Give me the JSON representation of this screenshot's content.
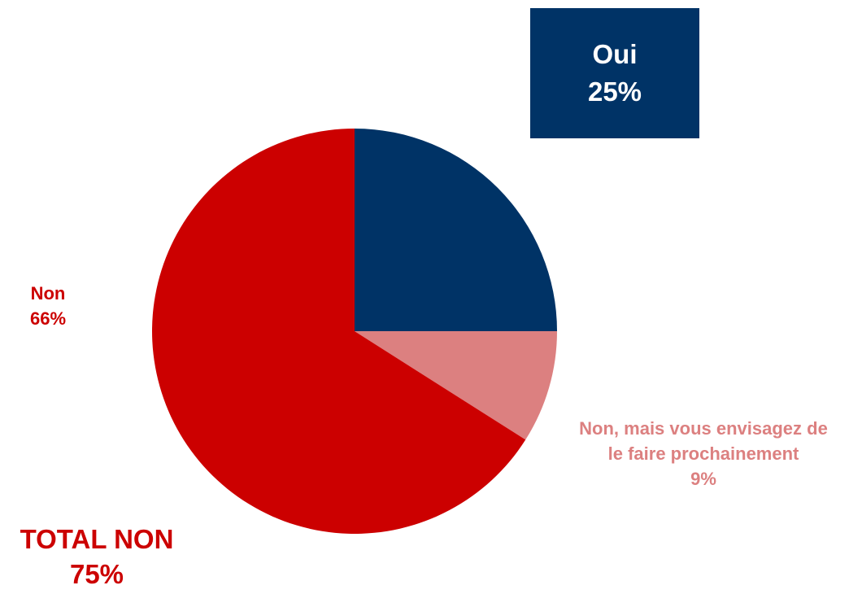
{
  "chart_data": {
    "type": "pie",
    "title": "",
    "slices": [
      {
        "label": "Oui",
        "value": 25,
        "display": "25%",
        "color": "#003366"
      },
      {
        "label": "Non, mais vous envisagez de le faire prochainement",
        "label_line1": "Non, mais vous envisagez de",
        "label_line2": "le faire prochainement",
        "value": 9,
        "display": "9%",
        "color": "#dc8080"
      },
      {
        "label": "Non",
        "value": 66,
        "display": "66%",
        "color": "#cc0000"
      }
    ],
    "total": {
      "label": "TOTAL NON",
      "value": 75,
      "display": "75%",
      "color": "#cc0000"
    },
    "legend": "none"
  }
}
